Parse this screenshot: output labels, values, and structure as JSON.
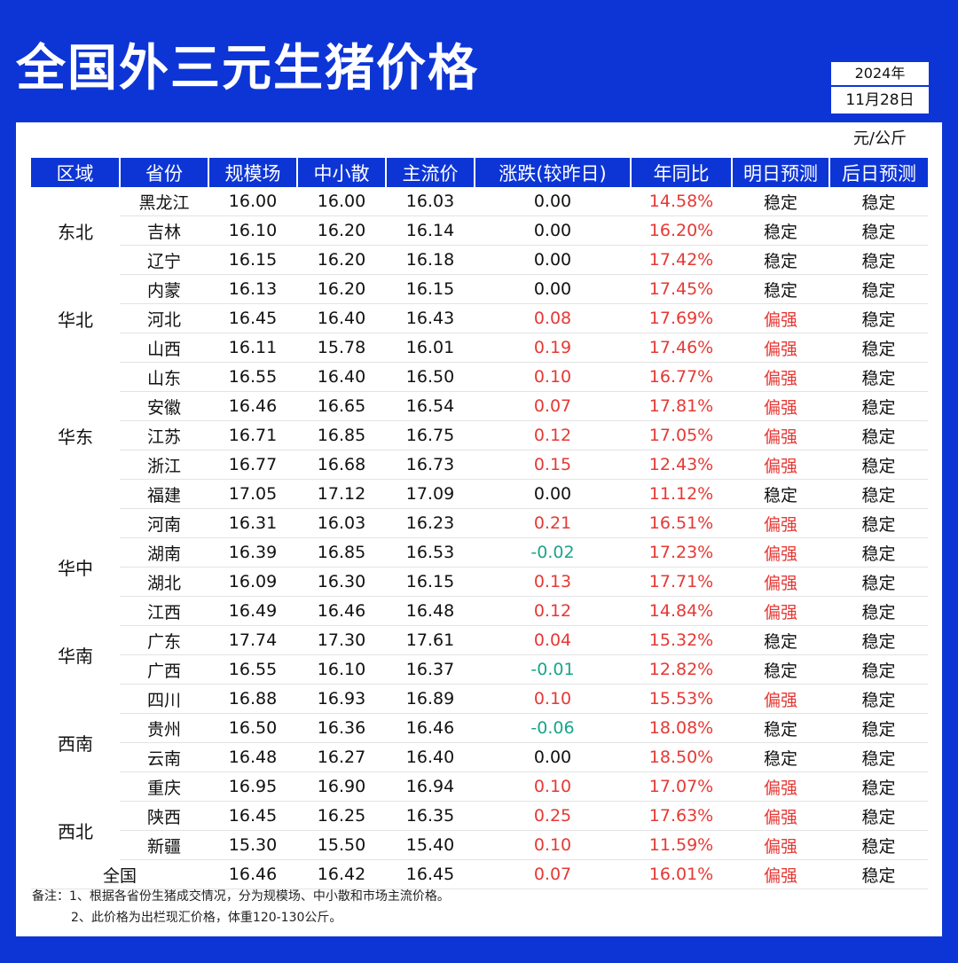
{
  "title": "全国外三元生猪价格",
  "date": {
    "year": "2024年",
    "day": "11月28日"
  },
  "unit": "元/公斤",
  "headers": [
    "区域",
    "省份",
    "规模场",
    "中小散",
    "主流价",
    "涨跌(较昨日)",
    "年同比",
    "明日预测",
    "后日预测"
  ],
  "regions": [
    "东北",
    "华北",
    "华东",
    "华中",
    "华南",
    "西南",
    "西北"
  ],
  "rows": [
    {
      "province": "黑龙江",
      "large": "16.00",
      "small": "16.00",
      "main": "16.03",
      "change": "0.00",
      "yoy": "14.58%",
      "tomorrow": "稳定",
      "after": "稳定"
    },
    {
      "province": "吉林",
      "large": "16.10",
      "small": "16.20",
      "main": "16.14",
      "change": "0.00",
      "yoy": "16.20%",
      "tomorrow": "稳定",
      "after": "稳定"
    },
    {
      "province": "辽宁",
      "large": "16.15",
      "small": "16.20",
      "main": "16.18",
      "change": "0.00",
      "yoy": "17.42%",
      "tomorrow": "稳定",
      "after": "稳定"
    },
    {
      "province": "内蒙",
      "large": "16.13",
      "small": "16.20",
      "main": "16.15",
      "change": "0.00",
      "yoy": "17.45%",
      "tomorrow": "稳定",
      "after": "稳定"
    },
    {
      "province": "河北",
      "large": "16.45",
      "small": "16.40",
      "main": "16.43",
      "change": "0.08",
      "yoy": "17.69%",
      "tomorrow": "偏强",
      "after": "稳定"
    },
    {
      "province": "山西",
      "large": "16.11",
      "small": "15.78",
      "main": "16.01",
      "change": "0.19",
      "yoy": "17.46%",
      "tomorrow": "偏强",
      "after": "稳定"
    },
    {
      "province": "山东",
      "large": "16.55",
      "small": "16.40",
      "main": "16.50",
      "change": "0.10",
      "yoy": "16.77%",
      "tomorrow": "偏强",
      "after": "稳定"
    },
    {
      "province": "安徽",
      "large": "16.46",
      "small": "16.65",
      "main": "16.54",
      "change": "0.07",
      "yoy": "17.81%",
      "tomorrow": "偏强",
      "after": "稳定"
    },
    {
      "province": "江苏",
      "large": "16.71",
      "small": "16.85",
      "main": "16.75",
      "change": "0.12",
      "yoy": "17.05%",
      "tomorrow": "偏强",
      "after": "稳定"
    },
    {
      "province": "浙江",
      "large": "16.77",
      "small": "16.68",
      "main": "16.73",
      "change": "0.15",
      "yoy": "12.43%",
      "tomorrow": "偏强",
      "after": "稳定"
    },
    {
      "province": "福建",
      "large": "17.05",
      "small": "17.12",
      "main": "17.09",
      "change": "0.00",
      "yoy": "11.12%",
      "tomorrow": "稳定",
      "after": "稳定"
    },
    {
      "province": "河南",
      "large": "16.31",
      "small": "16.03",
      "main": "16.23",
      "change": "0.21",
      "yoy": "16.51%",
      "tomorrow": "偏强",
      "after": "稳定"
    },
    {
      "province": "湖南",
      "large": "16.39",
      "small": "16.85",
      "main": "16.53",
      "change": "-0.02",
      "yoy": "17.23%",
      "tomorrow": "偏强",
      "after": "稳定"
    },
    {
      "province": "湖北",
      "large": "16.09",
      "small": "16.30",
      "main": "16.15",
      "change": "0.13",
      "yoy": "17.71%",
      "tomorrow": "偏强",
      "after": "稳定"
    },
    {
      "province": "江西",
      "large": "16.49",
      "small": "16.46",
      "main": "16.48",
      "change": "0.12",
      "yoy": "14.84%",
      "tomorrow": "偏强",
      "after": "稳定"
    },
    {
      "province": "广东",
      "large": "17.74",
      "small": "17.30",
      "main": "17.61",
      "change": "0.04",
      "yoy": "15.32%",
      "tomorrow": "稳定",
      "after": "稳定"
    },
    {
      "province": "广西",
      "large": "16.55",
      "small": "16.10",
      "main": "16.37",
      "change": "-0.01",
      "yoy": "12.82%",
      "tomorrow": "稳定",
      "after": "稳定"
    },
    {
      "province": "四川",
      "large": "16.88",
      "small": "16.93",
      "main": "16.89",
      "change": "0.10",
      "yoy": "15.53%",
      "tomorrow": "偏强",
      "after": "稳定"
    },
    {
      "province": "贵州",
      "large": "16.50",
      "small": "16.36",
      "main": "16.46",
      "change": "-0.06",
      "yoy": "18.08%",
      "tomorrow": "稳定",
      "after": "稳定"
    },
    {
      "province": "云南",
      "large": "16.48",
      "small": "16.27",
      "main": "16.40",
      "change": "0.00",
      "yoy": "18.50%",
      "tomorrow": "稳定",
      "after": "稳定"
    },
    {
      "province": "重庆",
      "large": "16.95",
      "small": "16.90",
      "main": "16.94",
      "change": "0.10",
      "yoy": "17.07%",
      "tomorrow": "偏强",
      "after": "稳定"
    },
    {
      "province": "陕西",
      "large": "16.45",
      "small": "16.25",
      "main": "16.35",
      "change": "0.25",
      "yoy": "17.63%",
      "tomorrow": "偏强",
      "after": "稳定"
    },
    {
      "province": "新疆",
      "large": "15.30",
      "small": "15.50",
      "main": "15.40",
      "change": "0.10",
      "yoy": "11.59%",
      "tomorrow": "偏强",
      "after": "稳定"
    }
  ],
  "national": {
    "label": "全国",
    "large": "16.46",
    "small": "16.42",
    "main": "16.45",
    "change": "0.07",
    "yoy": "16.01%",
    "tomorrow": "偏强",
    "after": "稳定"
  },
  "notes": {
    "line1": "备注：1、根据各省份生猪成交情况，分为规模场、中小散和市场主流价格。",
    "line2": "2、此价格为出栏现汇价格，体重120-130公斤。"
  },
  "colors": {
    "brand": "#0d35d6",
    "up": "#e53935",
    "down": "#1aa58a"
  }
}
